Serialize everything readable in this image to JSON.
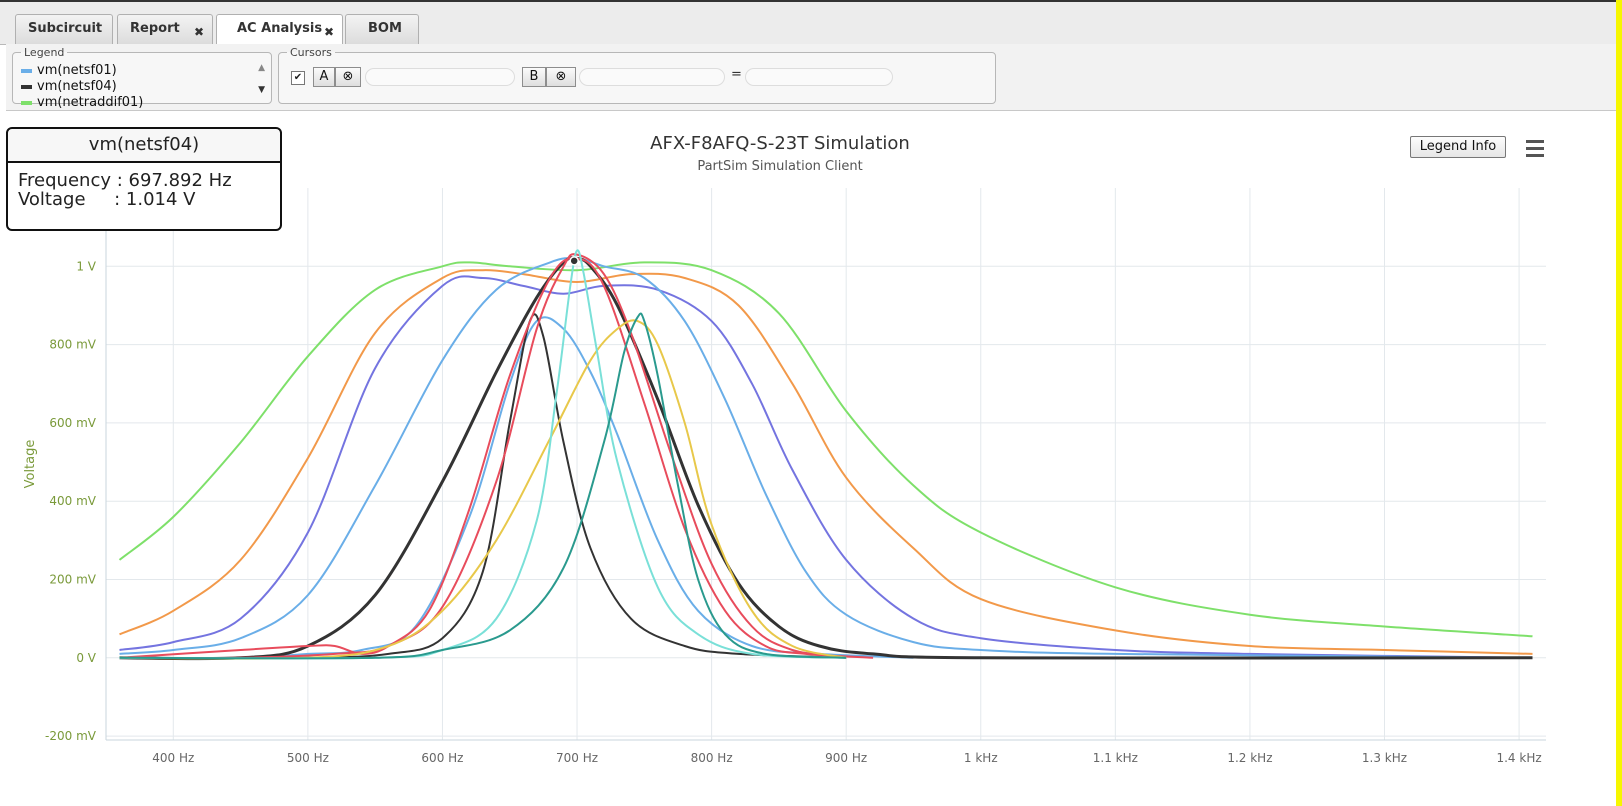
{
  "tabs": [
    {
      "label": "Subcircuit",
      "closable": false,
      "active": false
    },
    {
      "label": "Report",
      "closable": true,
      "active": false
    },
    {
      "label": "AC Analysis",
      "closable": true,
      "active": true
    },
    {
      "label": "BOM",
      "closable": false,
      "active": false
    }
  ],
  "close_glyph": "✖",
  "legend_panel": {
    "title": "Legend",
    "items": [
      {
        "label": "vm(netsf01)",
        "color": "#6aaee8"
      },
      {
        "label": "vm(netsf04)",
        "color": "#333333"
      },
      {
        "label": "vm(netraddif01)",
        "color": "#7ee06a"
      }
    ]
  },
  "cursors_panel": {
    "title": "Cursors",
    "checked": true,
    "check_glyph": "✔",
    "a_label": "A",
    "b_label": "B",
    "clear_glyph": "⊗",
    "a_value": "",
    "b_value": "",
    "equals": "=",
    "diff_value": ""
  },
  "tooltip": {
    "series": "vm(netsf04)",
    "freq_line": "Frequency : 697.892 Hz",
    "volt_line": "Voltage     : 1.014 V"
  },
  "legend_info_label": "Legend Info",
  "menu_icon": "hamburger-menu-icon",
  "chart_data": {
    "type": "line",
    "title": "AFX-F8AFQ-S-23T Simulation",
    "subtitle": "PartSim Simulation Client",
    "ylabel": "Voltage",
    "xlabel": "",
    "xlim": [
      350,
      1420
    ],
    "ylim": [
      -0.21,
      1.2
    ],
    "x_ticks": [
      400,
      500,
      600,
      700,
      800,
      900,
      1000,
      1100,
      1200,
      1300,
      1400
    ],
    "x_tick_labels": [
      "400 Hz",
      "500 Hz",
      "600 Hz",
      "700 Hz",
      "800 Hz",
      "900 Hz",
      "1 kHz",
      "1.1 kHz",
      "1.2 kHz",
      "1.3 kHz",
      "1.4 kHz"
    ],
    "y_ticks": [
      -0.2,
      0,
      0.2,
      0.4,
      0.6,
      0.8,
      1.0
    ],
    "y_tick_labels": [
      "-200 mV",
      "0 V",
      "200 mV",
      "400 mV",
      "600 mV",
      "800 mV",
      "1 V"
    ],
    "grid": true,
    "axis_color": "#7a9a3a",
    "series": [
      {
        "color": "#7ee06a",
        "width": 2,
        "x": [
          360,
          400,
          450,
          500,
          550,
          600,
          620,
          650,
          700,
          750,
          800,
          850,
          900,
          950,
          1000,
          1100,
          1200,
          1300,
          1410
        ],
        "y": [
          0.25,
          0.36,
          0.55,
          0.77,
          0.94,
          1.0,
          1.01,
          1.0,
          0.99,
          1.01,
          0.99,
          0.88,
          0.63,
          0.44,
          0.32,
          0.18,
          0.11,
          0.08,
          0.055
        ]
      },
      {
        "color": "#f2994a",
        "width": 2,
        "x": [
          360,
          400,
          450,
          500,
          550,
          600,
          630,
          660,
          700,
          740,
          780,
          820,
          860,
          900,
          950,
          1000,
          1100,
          1200,
          1300,
          1410
        ],
        "y": [
          0.06,
          0.12,
          0.25,
          0.51,
          0.83,
          0.97,
          0.99,
          0.98,
          0.96,
          0.98,
          0.97,
          0.9,
          0.7,
          0.46,
          0.28,
          0.15,
          0.07,
          0.03,
          0.02,
          0.01
        ]
      },
      {
        "color": "#7474e0",
        "width": 2,
        "x": [
          360,
          400,
          450,
          500,
          550,
          600,
          630,
          660,
          690,
          720,
          760,
          800,
          830,
          860,
          900,
          950,
          1000,
          1100,
          1200,
          1410
        ],
        "y": [
          0.02,
          0.04,
          0.1,
          0.32,
          0.74,
          0.95,
          0.97,
          0.95,
          0.93,
          0.95,
          0.94,
          0.86,
          0.7,
          0.48,
          0.25,
          0.1,
          0.05,
          0.02,
          0.01,
          0.0
        ]
      },
      {
        "color": "#6aaee8",
        "width": 2,
        "x": [
          360,
          400,
          450,
          500,
          550,
          600,
          640,
          680,
          700,
          720,
          750,
          780,
          810,
          840,
          870,
          900,
          950,
          1000,
          1100,
          1410
        ],
        "y": [
          0.01,
          0.02,
          0.05,
          0.16,
          0.44,
          0.76,
          0.94,
          1.01,
          1.02,
          1.0,
          0.97,
          0.86,
          0.66,
          0.42,
          0.22,
          0.11,
          0.04,
          0.02,
          0.01,
          0.0
        ]
      },
      {
        "color": "#6aaee8",
        "width": 2,
        "x": [
          360,
          450,
          500,
          540,
          580,
          620,
          650,
          670,
          690,
          710,
          730,
          760,
          790,
          830,
          880,
          950
        ],
        "y": [
          0.0,
          0.0,
          0.01,
          0.02,
          0.08,
          0.36,
          0.7,
          0.86,
          0.84,
          0.73,
          0.57,
          0.3,
          0.12,
          0.03,
          0.01,
          0.0
        ]
      },
      {
        "color": "#333333",
        "width": 3,
        "x": [
          360,
          450,
          500,
          550,
          600,
          640,
          670,
          690,
          700,
          710,
          730,
          760,
          790,
          820,
          850,
          880,
          920,
          1000,
          1410
        ],
        "y": [
          0.0,
          0.0,
          0.03,
          0.16,
          0.45,
          0.73,
          0.92,
          1.01,
          1.02,
          1.0,
          0.9,
          0.66,
          0.39,
          0.19,
          0.08,
          0.03,
          0.01,
          0.0,
          0.0
        ]
      },
      {
        "color": "#333333",
        "width": 2,
        "x": [
          360,
          500,
          560,
          600,
          630,
          650,
          665,
          675,
          690,
          710,
          740,
          780,
          820,
          900
        ],
        "y": [
          0.0,
          0.0,
          0.01,
          0.05,
          0.22,
          0.6,
          0.86,
          0.82,
          0.55,
          0.28,
          0.1,
          0.03,
          0.01,
          0.0
        ]
      },
      {
        "color": "#e84c5c",
        "width": 2,
        "x": [
          360,
          450,
          500,
          520,
          540,
          560,
          590,
          620,
          650,
          680,
          700,
          720,
          750,
          780,
          810,
          840,
          870,
          920
        ],
        "y": [
          0.0,
          0.02,
          0.03,
          0.03,
          0.01,
          0.03,
          0.12,
          0.38,
          0.72,
          0.97,
          1.02,
          0.95,
          0.65,
          0.33,
          0.12,
          0.03,
          0.01,
          0.0
        ]
      },
      {
        "color": "#e84c5c",
        "width": 2,
        "x": [
          360,
          450,
          520,
          560,
          600,
          640,
          670,
          690,
          700,
          720,
          740,
          770,
          800,
          830,
          860,
          900
        ],
        "y": [
          0.0,
          0.0,
          0.01,
          0.03,
          0.13,
          0.45,
          0.84,
          1.0,
          1.03,
          0.98,
          0.83,
          0.52,
          0.24,
          0.08,
          0.02,
          0.0
        ]
      },
      {
        "color": "#e8c84a",
        "width": 2,
        "x": [
          360,
          500,
          560,
          600,
          640,
          680,
          710,
          730,
          745,
          760,
          780,
          800,
          830,
          860,
          900
        ],
        "y": [
          0.0,
          0.0,
          0.03,
          0.12,
          0.3,
          0.56,
          0.76,
          0.84,
          0.86,
          0.8,
          0.6,
          0.34,
          0.12,
          0.03,
          0.0
        ]
      },
      {
        "color": "#7ae0d8",
        "width": 2,
        "x": [
          360,
          550,
          600,
          640,
          670,
          685,
          695,
          700,
          705,
          715,
          730,
          760,
          790,
          830,
          900
        ],
        "y": [
          0.0,
          0.0,
          0.02,
          0.1,
          0.35,
          0.68,
          0.95,
          1.04,
          0.98,
          0.78,
          0.5,
          0.18,
          0.06,
          0.01,
          0.0
        ]
      },
      {
        "color": "#2a9a8e",
        "width": 2,
        "x": [
          360,
          550,
          600,
          650,
          690,
          720,
          735,
          745,
          750,
          760,
          775,
          790,
          810,
          840,
          900
        ],
        "y": [
          0.0,
          0.0,
          0.02,
          0.07,
          0.23,
          0.55,
          0.78,
          0.87,
          0.86,
          0.72,
          0.44,
          0.2,
          0.06,
          0.01,
          0.0
        ]
      }
    ],
    "highlight_point": {
      "x": 697.892,
      "y": 1.014
    }
  }
}
